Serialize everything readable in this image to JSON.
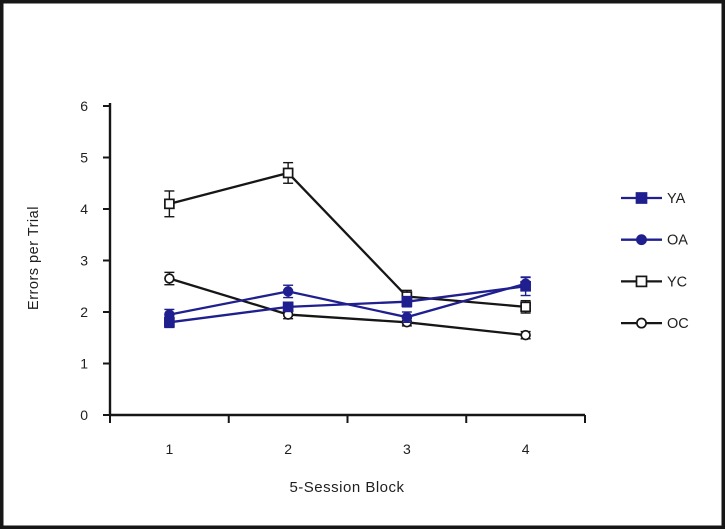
{
  "figure": {
    "background": "#ffffff",
    "frame_color": "#161616"
  },
  "chart_data": {
    "type": "line",
    "title": "",
    "xlabel": "5-Session Block",
    "ylabel": "Errors per Trial",
    "categories": [
      "1",
      "2",
      "3",
      "4"
    ],
    "y_ticks": [
      "0",
      "1",
      "2",
      "3",
      "4",
      "5",
      "6"
    ],
    "ylim": [
      0,
      6
    ],
    "grid": false,
    "error_bars": true,
    "legend_position": "right",
    "series": [
      {
        "name": "YA",
        "color": "#1f1f8f",
        "marker": "filled-square",
        "values": [
          1.8,
          2.1,
          2.2,
          2.5
        ],
        "errors": [
          0.1,
          0.08,
          0.1,
          0.18
        ]
      },
      {
        "name": "OA",
        "color": "#1f1f8f",
        "marker": "filled-circle",
        "values": [
          1.95,
          2.4,
          1.9,
          2.55
        ],
        "errors": [
          0.1,
          0.12,
          0.1,
          0.12
        ]
      },
      {
        "name": "YC",
        "color": "#161616",
        "marker": "open-square",
        "values": [
          4.1,
          4.7,
          2.3,
          2.1
        ],
        "errors": [
          0.25,
          0.2,
          0.12,
          0.12
        ]
      },
      {
        "name": "OC",
        "color": "#161616",
        "marker": "open-circle",
        "values": [
          2.65,
          1.95,
          1.8,
          1.55
        ],
        "errors": [
          0.12,
          0.08,
          0.07,
          0.07
        ]
      }
    ]
  }
}
